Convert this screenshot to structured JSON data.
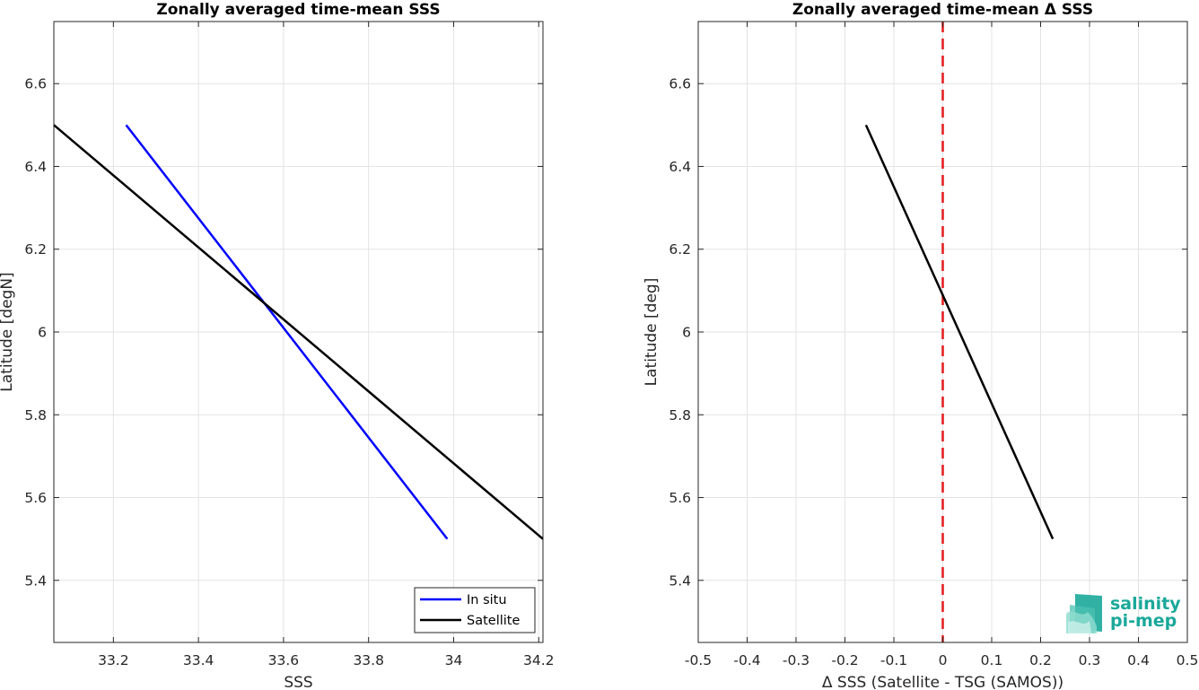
{
  "chart_data": [
    {
      "type": "line",
      "title": "Zonally averaged time-mean SSS",
      "xlabel": "SSS",
      "ylabel": "Latitude [degN]",
      "xlim": [
        33.06,
        34.21
      ],
      "ylim": [
        5.25,
        6.75
      ],
      "xticks": [
        33.2,
        33.4,
        33.6,
        33.8,
        34,
        34.2
      ],
      "xtick_labels": [
        "33.2",
        "33.4",
        "33.6",
        "33.8",
        "34",
        "34.2"
      ],
      "yticks": [
        5.4,
        5.6,
        5.8,
        6,
        6.2,
        6.4,
        6.6
      ],
      "ytick_labels": [
        "5.4",
        "5.6",
        "5.8",
        "6",
        "6.2",
        "6.4",
        "6.6"
      ],
      "grid": true,
      "legend_position": "bottom-right",
      "series": [
        {
          "name": "In situ",
          "color": "#0000ff",
          "x": [
            33.23,
            33.985
          ],
          "y": [
            6.5,
            5.5
          ]
        },
        {
          "name": "Satellite",
          "color": "#000000",
          "x": [
            33.06,
            34.21
          ],
          "y": [
            6.5,
            5.5
          ]
        }
      ]
    },
    {
      "type": "line",
      "title": "Zonally averaged time-mean Δ SSS",
      "xlabel": "Δ SSS (Satellite - TSG (SAMOS))",
      "ylabel": "Latitude [deg]",
      "xlim": [
        -0.5,
        0.5
      ],
      "ylim": [
        5.25,
        6.75
      ],
      "xticks": [
        -0.5,
        -0.4,
        -0.3,
        -0.2,
        -0.1,
        0,
        0.1,
        0.2,
        0.3,
        0.4,
        0.5
      ],
      "xtick_labels": [
        "-0.5",
        "-0.4",
        "-0.3",
        "-0.2",
        "-0.1",
        "0",
        "0.1",
        "0.2",
        "0.3",
        "0.4",
        "0.5"
      ],
      "yticks": [
        5.4,
        5.6,
        5.8,
        6,
        6.2,
        6.4,
        6.6
      ],
      "ytick_labels": [
        "5.4",
        "5.6",
        "5.8",
        "6",
        "6.2",
        "6.4",
        "6.6"
      ],
      "grid": true,
      "reference_line": {
        "x": 0,
        "color": "#e31a1c",
        "style": "dashed"
      },
      "series": [
        {
          "color": "#000000",
          "x": [
            -0.157,
            0.225
          ],
          "y": [
            6.5,
            5.5
          ]
        }
      ]
    }
  ],
  "logo": {
    "line1": "salinity",
    "line2": "pi-mep",
    "color": "#1aa89a"
  }
}
